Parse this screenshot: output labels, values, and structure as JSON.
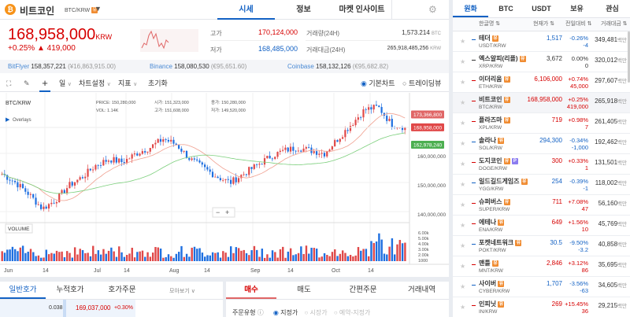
{
  "header": {
    "coin_name": "비트코인",
    "pair": "BTC/KRW",
    "coin_badge": "유",
    "tabs": [
      "시세",
      "정보",
      "마켓 인사이트"
    ],
    "active_tab": 0
  },
  "price": {
    "current": "168,958,000",
    "unit": "KRW",
    "change_pct": "+0.25%",
    "change_abs": "▲ 419,000",
    "high_label": "고가",
    "high": "170,124,000",
    "low_label": "저가",
    "low": "168,485,000",
    "vol_label": "거래량(24H)",
    "vol": "1,573.214",
    "vol_unit": "BTC",
    "amt_label": "거래대금(24H)",
    "amt": "265,918,485,256",
    "amt_unit": "KRW"
  },
  "exchanges": [
    {
      "name": "BitFlyer",
      "price": "158,357,221",
      "local": "(¥16,863,915.00)"
    },
    {
      "name": "Binance",
      "price": "158,080,530",
      "local": "(€95,651.60)"
    },
    {
      "name": "Coinbase",
      "price": "158,132,126",
      "local": "(€95,682.82)"
    }
  ],
  "toolbar": {
    "interval": "일",
    "chart_settings": "차트설정",
    "indicators": "지표",
    "reset": "초기화",
    "basic_chart": "기본차트",
    "trading_view": "트레이딩뷰",
    "selected": "기본차트"
  },
  "chart_data": {
    "type": "candlestick",
    "symbol": "BTC/KRW",
    "overlays_label": "Overlays",
    "volume_label": "VOLUME",
    "legend": {
      "price_label": "PRICE:",
      "price": "150,280,000",
      "vol_label": "VOL:",
      "vol": "1.14K",
      "open_label": "시가:",
      "open": "151,323,000",
      "high_label": "고가:",
      "high": "151,608,000",
      "close_label": "종가:",
      "close": "150,280,000",
      "low_label": "저가:",
      "low": "149,520,000"
    },
    "y_ticks": [
      "160,000,000",
      "150,000,000",
      "140,000,000"
    ],
    "y_tick_values": [
      160000000,
      150000000,
      140000000
    ],
    "vol_ticks": [
      "6.00k",
      "5.00k",
      "4.00k",
      "3.00k",
      "2.00k",
      "1000"
    ],
    "x_ticks": [
      "Jun",
      "14",
      "Jul",
      "14",
      "Aug",
      "14",
      "Sep",
      "14",
      "Oct",
      "14"
    ],
    "price_tags": [
      {
        "label": "173,366,800",
        "value": 173366800,
        "color": "#e06666"
      },
      {
        "label": "168,958,000",
        "value": 168958000,
        "color": "#e04848"
      },
      {
        "label": "162,978,240",
        "value": 162978240,
        "color": "#4caf50"
      }
    ],
    "approx_closes_keypoints": [
      153,
      150,
      146,
      141,
      144,
      149,
      152,
      156,
      158,
      157,
      160,
      162,
      165,
      163,
      158,
      155,
      152,
      150,
      153,
      156,
      159,
      161,
      162,
      161,
      160,
      165,
      170,
      175,
      176,
      170,
      169
    ]
  },
  "orderbook": {
    "tabs": [
      "일반호가",
      "누적호가",
      "호가주문"
    ],
    "active": 0,
    "view": "모아보기",
    "row": {
      "qty": "0.038",
      "price": "169,037,000",
      "pct": "+0.30%"
    }
  },
  "order": {
    "tabs": [
      "매수",
      "매도",
      "간편주문",
      "거래내역"
    ],
    "active": 0,
    "type_label": "주문유형",
    "options": [
      "지정가",
      "시장가",
      "예약-지정가"
    ],
    "selected": "지정가"
  },
  "market": {
    "tabs": [
      "원화",
      "BTC",
      "USDT",
      "보유",
      "관심"
    ],
    "active": 0,
    "cols": [
      "한글명",
      "현재가",
      "전일대비",
      "거래대금"
    ],
    "unit": "백만",
    "rows": [
      {
        "name": "테더",
        "code": "USDT/KRW",
        "price": "1,517",
        "pct": "-0.26%",
        "diff": "-4",
        "vol": "349,481",
        "dir": "down"
      },
      {
        "name": "엑스알피(리플)",
        "code": "XRP/KRW",
        "price": "3,672",
        "pct": "0.00%",
        "diff": "0",
        "vol": "320,012",
        "dir": "flat"
      },
      {
        "name": "이더리움",
        "code": "ETH/KRW",
        "price": "6,106,000",
        "pct": "+0.74%",
        "diff": "45,000",
        "vol": "297,607",
        "dir": "up"
      },
      {
        "name": "비트코인",
        "code": "BTC/KRW",
        "price": "168,958,000",
        "pct": "+0.25%",
        "diff": "419,000",
        "vol": "265,918",
        "dir": "up",
        "sel": true
      },
      {
        "name": "플라즈마",
        "code": "XPL/KRW",
        "price": "719",
        "pct": "+0.98%",
        "diff": "7",
        "vol": "261,405",
        "dir": "up"
      },
      {
        "name": "솔라나",
        "code": "SOL/KRW",
        "price": "294,300",
        "pct": "-0.34%",
        "diff": "-1,000",
        "vol": "192,462",
        "dir": "down"
      },
      {
        "name": "도지코인",
        "code": "DOGE/KRW",
        "price": "300",
        "pct": "+0.33%",
        "diff": "1",
        "vol": "131,501",
        "dir": "up",
        "extra": "P"
      },
      {
        "name": "일드길드게임즈",
        "code": "YGG/KRW",
        "price": "254",
        "pct": "-0.39%",
        "diff": "-1",
        "vol": "118,002",
        "dir": "down"
      },
      {
        "name": "슈퍼버스",
        "code": "SUPER/KRW",
        "price": "711",
        "pct": "+7.08%",
        "diff": "47",
        "vol": "56,160",
        "dir": "up"
      },
      {
        "name": "에테나",
        "code": "ENA/KRW",
        "price": "649",
        "pct": "+1.56%",
        "diff": "10",
        "vol": "45,769",
        "dir": "up"
      },
      {
        "name": "포켓네트워크",
        "code": "POKT/KRW",
        "price": "30.5",
        "pct": "-9.50%",
        "diff": "-3.2",
        "vol": "40,858",
        "dir": "down"
      },
      {
        "name": "맨틀",
        "code": "MNT/KRW",
        "price": "2,846",
        "pct": "+3.12%",
        "diff": "86",
        "vol": "35,695",
        "dir": "up"
      },
      {
        "name": "사이버",
        "code": "CYBER/KRW",
        "price": "1,707",
        "pct": "-3.56%",
        "diff": "-63",
        "vol": "34,605",
        "dir": "down"
      },
      {
        "name": "인피닛",
        "code": "IN/KRW",
        "price": "269",
        "pct": "+15.45%",
        "diff": "36",
        "vol": "29,215",
        "dir": "up"
      }
    ]
  },
  "colors": {
    "up": "#d60000",
    "down": "#1261c4",
    "accent": "#1261c4"
  }
}
